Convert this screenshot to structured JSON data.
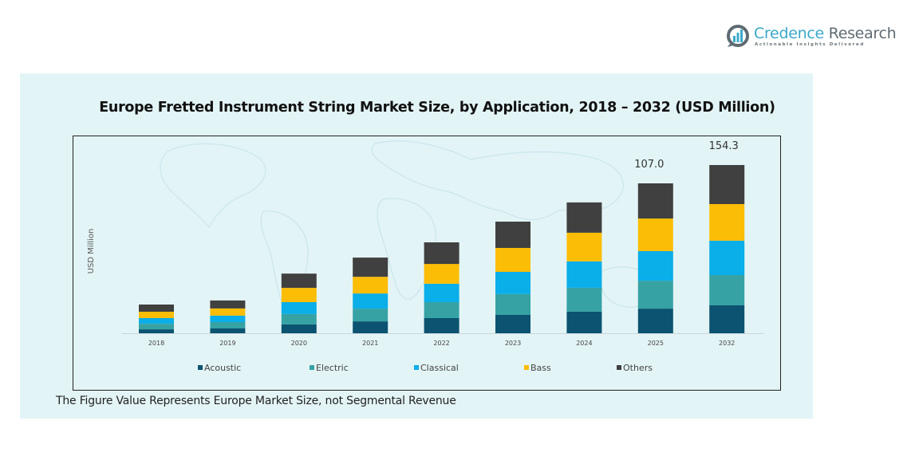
{
  "brand": {
    "name_part1": "Credence",
    "name_part2": "Research",
    "tagline": "Actionable Insights Delivered"
  },
  "footnote": "The Figure Value Represents Europe Market Size, not Segmental Revenue",
  "colors": {
    "Acoustic": "#0b5370",
    "Electric": "#36a2a4",
    "Classical": "#0aaee8",
    "Bass": "#fbbd06",
    "Others": "#404040",
    "panel_bg": "#e3f4f6"
  },
  "chart_data": {
    "type": "bar",
    "stacked": true,
    "title": "Europe Fretted Instrument String Market Size, by Application, 2018 – 2032 (USD Million)",
    "xlabel": "",
    "ylabel": "USD Million",
    "categories": [
      "2018",
      "2019",
      "2020",
      "2021",
      "2022",
      "2023",
      "2024",
      "2025",
      "2032"
    ],
    "series": [
      {
        "name": "Acoustic",
        "values": [
          2.8,
          3.4,
          6.3,
          8.5,
          10.8,
          13.1,
          15.4,
          17.6,
          25.6
        ]
      },
      {
        "name": "Electric",
        "values": [
          4.0,
          4.6,
          7.4,
          9.1,
          11.4,
          14.8,
          17.1,
          19.9,
          27.8
        ]
      },
      {
        "name": "Classical",
        "values": [
          4.0,
          4.6,
          8.5,
          10.8,
          13.1,
          15.9,
          18.8,
          21.1,
          31.5
        ]
      },
      {
        "name": "Bass",
        "values": [
          4.6,
          5.1,
          10.2,
          11.9,
          14.2,
          17.1,
          20.5,
          23.3,
          33.6
        ]
      },
      {
        "name": "Others",
        "values": [
          5.1,
          5.7,
          10.2,
          13.7,
          15.4,
          18.8,
          21.6,
          25.1,
          35.8
        ]
      }
    ],
    "totals": [
      20.5,
      23.4,
      42.6,
      54.0,
      64.9,
      79.7,
      93.4,
      107.0,
      154.3
    ],
    "data_labels": [
      {
        "category": "2025",
        "text": "107.0"
      },
      {
        "category": "2032",
        "text": "154.3"
      }
    ],
    "legend": [
      "Acoustic",
      "Electric",
      "Classical",
      "Bass",
      "Others"
    ],
    "legend_position": "bottom",
    "grid": false,
    "y_axis_visible": false
  }
}
